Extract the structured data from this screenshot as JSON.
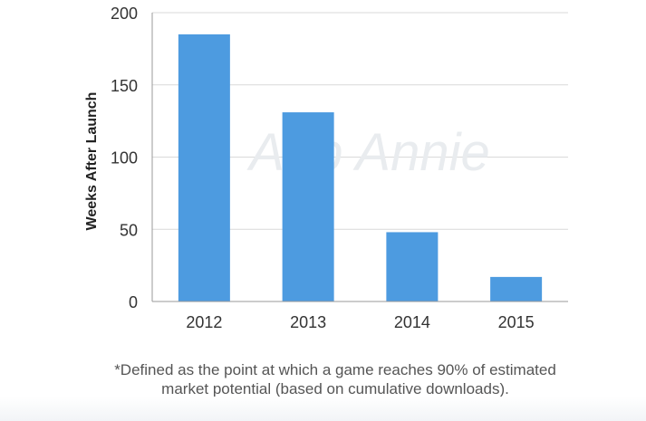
{
  "chart_data": {
    "type": "bar",
    "title": "",
    "xlabel": "",
    "ylabel": "Weeks After Launch",
    "categories": [
      "2012",
      "2013",
      "2014",
      "2015"
    ],
    "values": [
      185,
      131,
      48,
      17
    ],
    "ylim": [
      0,
      200
    ],
    "yticks": [
      "0",
      "50",
      "100",
      "150",
      "200"
    ],
    "grid": true,
    "bar_color": "#4d9be0",
    "grid_color": "#d9d9d9",
    "axis_color": "#9a9a9a"
  },
  "watermark": "App Annie",
  "footnote": {
    "line1": "*Defined as the point at which a game reaches 90% of estimated",
    "line2": "market potential (based on cumulative downloads)."
  }
}
